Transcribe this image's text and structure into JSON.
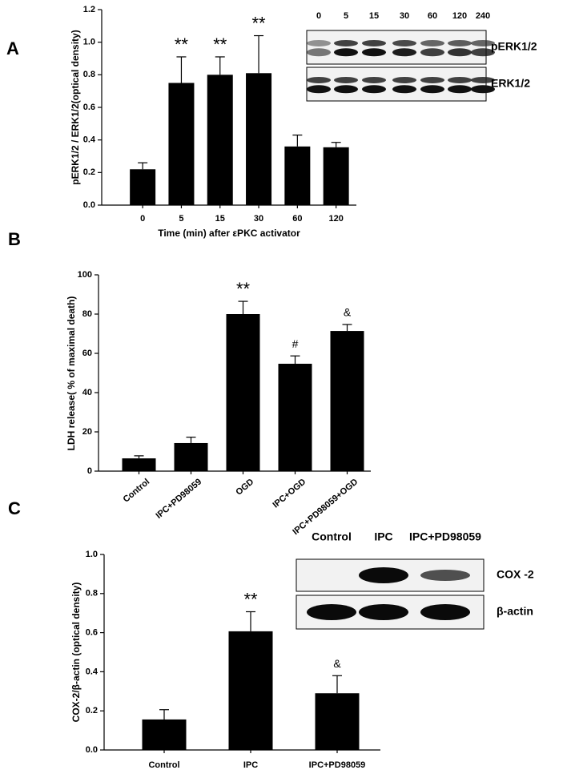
{
  "chart_data": [
    {
      "type": "bar",
      "panel_label": "A",
      "y_label": "pERK1/2 / ERK1/2(optical density)",
      "x_label": "Time (min) after εPKC activator",
      "categories": [
        "0",
        "5",
        "15",
        "30",
        "60",
        "120"
      ],
      "values": [
        0.22,
        0.75,
        0.8,
        0.81,
        0.36,
        0.355
      ],
      "errors": [
        0.04,
        0.16,
        0.11,
        0.23,
        0.07,
        0.03
      ],
      "annotations": [
        null,
        "**",
        "**",
        "**",
        null,
        null
      ],
      "color": "#000000",
      "ylim": [
        0,
        1.2
      ],
      "yticks": [
        {
          "value": 0,
          "label": "0.0"
        },
        {
          "value": 0.2,
          "label": "0.2"
        },
        {
          "value": 0.4,
          "label": "0.4"
        },
        {
          "value": 0.6,
          "label": "0.6"
        },
        {
          "value": 0.8,
          "label": "0.8"
        },
        {
          "value": 1.0,
          "label": "1.0"
        },
        {
          "value": 1.2,
          "label": "1.2"
        }
      ],
      "inset": {
        "lanes": [
          "0",
          "5",
          "15",
          "30",
          "60",
          "120",
          "240"
        ],
        "rows": [
          "pERK1/2",
          "ERK1/2"
        ]
      }
    },
    {
      "type": "bar",
      "panel_label": "B",
      "y_label": "LDH release( % of maximal death)",
      "categories": [
        "Control",
        "IPC+PD98059",
        "OGD",
        "IPC+OGD",
        "IPC+PD98059+OGD"
      ],
      "values": [
        6.5,
        14.3,
        80,
        54.7,
        71.4
      ],
      "errors": [
        1.3,
        3,
        6.5,
        4,
        3.3
      ],
      "annotations": [
        null,
        null,
        "**",
        "#",
        "&"
      ],
      "color": "#000000",
      "ylim": [
        0,
        100
      ],
      "yticks": [
        0,
        20,
        40,
        60,
        80,
        100
      ]
    },
    {
      "type": "bar",
      "panel_label": "C",
      "y_label": "COX-2/β-actin (optical density)",
      "categories": [
        "Control",
        "IPC",
        "IPC+PD98059"
      ],
      "values": [
        0.156,
        0.607,
        0.29
      ],
      "errors": [
        0.05,
        0.1,
        0.09
      ],
      "annotations": [
        null,
        "**",
        "&"
      ],
      "color": "#000000",
      "ylim": [
        0,
        1.0
      ],
      "yticks": [
        {
          "value": 0,
          "label": "0.0"
        },
        {
          "value": 0.2,
          "label": "0.2"
        },
        {
          "value": 0.4,
          "label": "0.4"
        },
        {
          "value": 0.6,
          "label": "0.6"
        },
        {
          "value": 0.8,
          "label": "0.8"
        },
        {
          "value": 1.0,
          "label": "1.0"
        }
      ],
      "inset": {
        "lanes": [
          "Control",
          "IPC",
          "IPC+PD98059"
        ],
        "rows": [
          "COX -2",
          "β-actin"
        ]
      }
    }
  ]
}
